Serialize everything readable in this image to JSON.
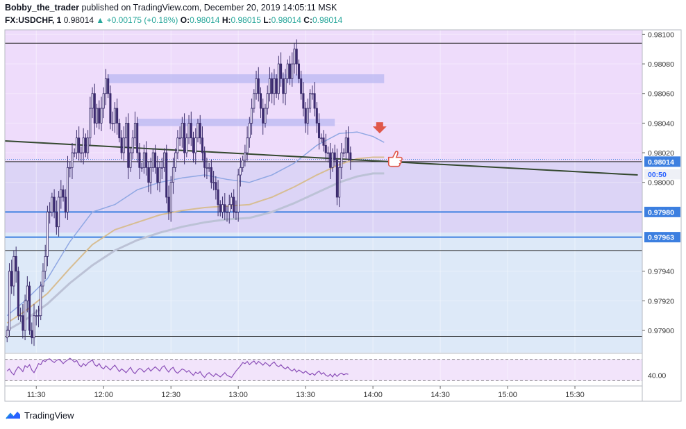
{
  "header": {
    "author": "Bobby_the_trader",
    "published_text": "published on TradingView.com, December 20, 2019 14:05:11 MSK",
    "symbol": "FX:USDCHF, 1",
    "last": "0.98014",
    "change": "+0.00175 (+0.18%)",
    "o_label": "O:",
    "o_value": "0.98014",
    "h_label": "H:",
    "h_value": "0.98015",
    "l_label": "L:",
    "l_value": "0.98014",
    "c_label": "C:",
    "c_value": "0.98014"
  },
  "brand": {
    "name": "TradingView"
  },
  "colors": {
    "up_text": "#26a69a",
    "zone_upper": "#eedcfb",
    "zone_mid": "#dcd4f6",
    "zone_lower": "#dde9f8",
    "candle_body": "#3d2a73",
    "candle_border": "#6e7fa6",
    "ma_fast": "#8fa7e3",
    "ma_mid": "#d7bd92",
    "ma_slow": "#bcc2d6",
    "trendline": "#34482f",
    "support_line": "#3c7fe0",
    "rsi_line": "#8b4fb8",
    "arrow": "#e0584a",
    "price_tag": "#3c7fe0"
  },
  "chart_data": {
    "type": "candlestick",
    "ylim": [
      0.97885,
      0.98103
    ],
    "xlim": [
      "11:16",
      "16:00"
    ],
    "y_tick_labels": [
      "0.98100",
      "0.98080",
      "0.98060",
      "0.98040",
      "0.98020",
      "0.98000",
      "0.97940",
      "0.97920",
      "0.97900"
    ],
    "y_ticks": [
      0.981,
      0.9808,
      0.9806,
      0.9804,
      0.9802,
      0.98,
      0.9794,
      0.9792,
      0.979
    ],
    "x_tick_labels": [
      "11:30",
      "12:00",
      "12:30",
      "13:00",
      "13:30",
      "14:00",
      "14:30",
      "15:00",
      "15:30"
    ],
    "x_ticks_minutes": [
      690,
      720,
      750,
      780,
      810,
      840,
      870,
      900,
      930
    ],
    "price_labels": [
      {
        "text": "0.98014",
        "value": 0.98014,
        "kind": "last"
      },
      {
        "text": "00:50",
        "kind": "countdown"
      },
      {
        "text": "0.97980",
        "value": 0.9798,
        "kind": "level"
      },
      {
        "text": "0.97963",
        "value": 0.97963,
        "kind": "level"
      }
    ],
    "horizontal_levels": [
      {
        "value": 0.98094,
        "style": "thin-black"
      },
      {
        "value": 0.98014,
        "style": "black"
      },
      {
        "value": 0.9798,
        "style": "blue"
      },
      {
        "value": 0.97963,
        "style": "blue"
      },
      {
        "value": 0.97954,
        "style": "thin-black"
      },
      {
        "value": 0.97896,
        "style": "thin-black"
      }
    ],
    "zones": [
      {
        "from": 0.98014,
        "to": 0.98103,
        "color": "zone_upper"
      },
      {
        "from": 0.97966,
        "to": 0.98014,
        "color": "zone_mid"
      },
      {
        "from": 0.97885,
        "to": 0.97966,
        "color": "zone_lower"
      }
    ],
    "resistance_boxes": [
      {
        "x_start": 722,
        "x_end": 845,
        "y_low": 0.98067,
        "y_high": 0.98073
      },
      {
        "x_start": 735,
        "x_end": 823,
        "y_low": 0.98038,
        "y_high": 0.98043
      }
    ],
    "trendline": [
      {
        "x": 676,
        "y": 0.98028
      },
      {
        "x": 958,
        "y": 0.98005
      }
    ],
    "candles": {
      "x_start": 677,
      "x_step": 1,
      "close": [
        0.979,
        0.9794,
        0.9793,
        0.9795,
        0.9794,
        0.9791,
        0.9791,
        0.979,
        0.9792,
        0.9793,
        0.979,
        0.97895,
        0.9791,
        0.9791,
        0.9791,
        0.9793,
        0.9794,
        0.9795,
        0.9798,
        0.9798,
        0.9799,
        0.9798,
        0.9797,
        0.9799,
        0.97995,
        0.9799,
        0.9798,
        0.9801,
        0.9801,
        0.9802,
        0.9802,
        0.9803,
        0.9802,
        0.9802,
        0.9803,
        0.9802,
        0.9803,
        0.9805,
        0.9806,
        0.9804,
        0.9805,
        0.9804,
        0.9805,
        0.9806,
        0.9807,
        0.9806,
        0.9804,
        0.9804,
        0.9805,
        0.9804,
        0.9803,
        0.9802,
        0.9803,
        0.9804,
        0.9801,
        0.9802,
        0.9803,
        0.9804,
        0.9802,
        0.9801,
        0.9801,
        0.9802,
        0.9801,
        0.98,
        0.9801,
        0.9802,
        0.9801,
        0.98,
        0.9801,
        0.9801,
        0.9802,
        0.9799,
        0.9798,
        0.98,
        0.9801,
        0.9802,
        0.9803,
        0.9803,
        0.9804,
        0.9802,
        0.9803,
        0.9804,
        0.9803,
        0.9802,
        0.9803,
        0.9804,
        0.9803,
        0.9802,
        0.9801,
        0.9801,
        0.9801,
        0.98,
        0.98,
        0.97995,
        0.97985,
        0.9798,
        0.97985,
        0.9798,
        0.9798,
        0.97985,
        0.9799,
        0.9798,
        0.9798,
        0.98005,
        0.9801,
        0.98015,
        0.9802,
        0.9803,
        0.9804,
        0.9805,
        0.9806,
        0.9807,
        0.9806,
        0.9805,
        0.9804,
        0.9805,
        0.9806,
        0.9807,
        0.9806,
        0.9807,
        0.9806,
        0.9808,
        0.9807,
        0.9806,
        0.9807,
        0.9808,
        0.9807,
        0.9808,
        0.9809,
        0.9808,
        0.9807,
        0.9806,
        0.9805,
        0.9804,
        0.9805,
        0.9806,
        0.9806,
        0.9805,
        0.9804,
        0.9803,
        0.9803,
        0.98025,
        0.9802,
        0.9802,
        0.9801,
        0.9802,
        0.98015,
        0.9799,
        0.9801,
        0.9802,
        0.9802,
        0.9803,
        0.9802,
        0.98015
      ]
    },
    "ma_fast": {
      "x": [
        677,
        685,
        695,
        705,
        715,
        725,
        735,
        745,
        755,
        765,
        775,
        785,
        795,
        805,
        815,
        825,
        833,
        840,
        845
      ],
      "y": [
        0.9791,
        0.9792,
        0.97935,
        0.9796,
        0.9798,
        0.97985,
        0.97995,
        0.98,
        0.98003,
        0.98005,
        0.98002,
        0.98,
        0.98005,
        0.98013,
        0.98025,
        0.98033,
        0.98034,
        0.98031,
        0.98027
      ]
    },
    "ma_mid": {
      "x": [
        677,
        685,
        695,
        705,
        715,
        725,
        735,
        745,
        755,
        765,
        775,
        785,
        795,
        805,
        815,
        825,
        833,
        840,
        845
      ],
      "y": [
        0.97905,
        0.97913,
        0.97925,
        0.97942,
        0.97958,
        0.97968,
        0.97973,
        0.97978,
        0.97981,
        0.97983,
        0.97984,
        0.97985,
        0.9799,
        0.97997,
        0.98005,
        0.98012,
        0.98016,
        0.98017,
        0.98017
      ]
    },
    "ma_slow": {
      "x": [
        677,
        685,
        695,
        705,
        715,
        725,
        735,
        745,
        755,
        765,
        775,
        785,
        795,
        805,
        815,
        825,
        833,
        840,
        845
      ],
      "y": [
        0.979,
        0.97907,
        0.97918,
        0.97932,
        0.97944,
        0.97954,
        0.97961,
        0.97966,
        0.9797,
        0.97973,
        0.97975,
        0.97976,
        0.9798,
        0.97986,
        0.97993,
        0.98,
        0.98004,
        0.98006,
        0.98006
      ]
    },
    "arrow_marker": {
      "x": 843,
      "y": 0.98034
    },
    "thumb_marker": {
      "x": 847,
      "y": 0.98015
    },
    "rsi": {
      "tick_label": "40.00",
      "ylim": [
        20,
        80
      ],
      "guides": [
        70,
        30
      ],
      "x_start": 677,
      "values": [
        48,
        52,
        45,
        41,
        50,
        56,
        52,
        47,
        58,
        55,
        60,
        50,
        45,
        53,
        62,
        60,
        68,
        66,
        70,
        71,
        67,
        64,
        68,
        70,
        67,
        62,
        66,
        69,
        72,
        69,
        65,
        68,
        60,
        56,
        62,
        58,
        63,
        66,
        69,
        60,
        57,
        62,
        55,
        52,
        58,
        54,
        50,
        55,
        59,
        53,
        47,
        52,
        49,
        45,
        50,
        55,
        47,
        43,
        49,
        53,
        51,
        46,
        50,
        54,
        48,
        52,
        56,
        52,
        48,
        55,
        58,
        51,
        46,
        52,
        55,
        47,
        44,
        48,
        52,
        50,
        46,
        49,
        44,
        40,
        46,
        43,
        47,
        40,
        36,
        42,
        45,
        41,
        38,
        43,
        40,
        37,
        41,
        45,
        40,
        38,
        36,
        42,
        48,
        53,
        58,
        64,
        62,
        66,
        60,
        64,
        67,
        61,
        66,
        63,
        59,
        64,
        61,
        57,
        62,
        65,
        59,
        56,
        60,
        55,
        52,
        56,
        51,
        48,
        52,
        46,
        50,
        47,
        44,
        48,
        44,
        41,
        44,
        40,
        45,
        48,
        42,
        45,
        40,
        38,
        42,
        37,
        43,
        38,
        42,
        44,
        41,
        43,
        42
      ]
    }
  }
}
